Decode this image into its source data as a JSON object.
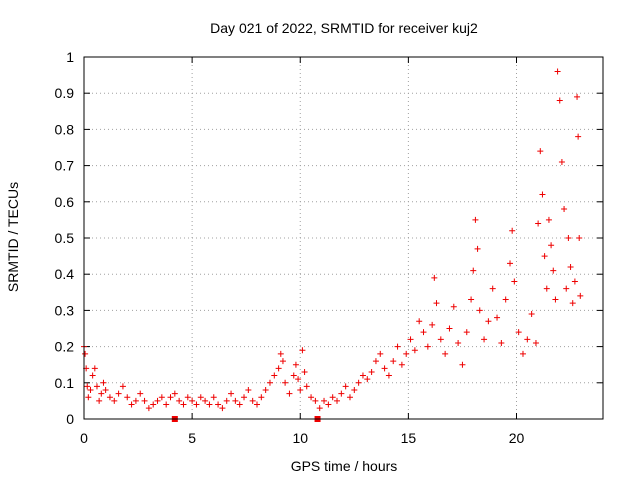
{
  "chart_data": {
    "type": "scatter",
    "title": "Day 021 of 2022, SRMTID for receiver kuj2",
    "xlabel": "GPS time / hours",
    "ylabel": "SRMTID / TECUs",
    "xlim": [
      0,
      24
    ],
    "ylim": [
      0,
      1
    ],
    "xticks": [
      0,
      5,
      10,
      15,
      20
    ],
    "xtick_labels": [
      "0",
      "5",
      "10",
      "15",
      "20"
    ],
    "yticks": [
      0,
      0.1,
      0.2,
      0.3,
      0.4,
      0.5,
      0.6,
      0.7,
      0.8,
      0.9,
      1
    ],
    "ytick_labels": [
      "0",
      "0.1",
      "0.2",
      "0.3",
      "0.4",
      "0.5",
      "0.6",
      "0.7",
      "0.8",
      "0.9",
      "1"
    ],
    "grid": true,
    "marker": "plus",
    "series": [
      {
        "name": "SRMTID",
        "color": "#ee0000",
        "points": [
          [
            0.0,
            0.2
          ],
          [
            0.05,
            0.18
          ],
          [
            0.1,
            0.14
          ],
          [
            0.15,
            0.09
          ],
          [
            0.2,
            0.06
          ],
          [
            0.3,
            0.08
          ],
          [
            0.4,
            0.12
          ],
          [
            0.5,
            0.14
          ],
          [
            0.6,
            0.09
          ],
          [
            0.7,
            0.05
          ],
          [
            0.8,
            0.07
          ],
          [
            0.9,
            0.1
          ],
          [
            1.0,
            0.08
          ],
          [
            1.2,
            0.06
          ],
          [
            1.4,
            0.05
          ],
          [
            1.6,
            0.07
          ],
          [
            1.8,
            0.09
          ],
          [
            2.0,
            0.06
          ],
          [
            2.2,
            0.04
          ],
          [
            2.4,
            0.05
          ],
          [
            2.6,
            0.07
          ],
          [
            2.8,
            0.05
          ],
          [
            3.0,
            0.03
          ],
          [
            3.2,
            0.04
          ],
          [
            3.4,
            0.05
          ],
          [
            3.6,
            0.06
          ],
          [
            3.8,
            0.04
          ],
          [
            4.0,
            0.06
          ],
          [
            4.2,
            0.07
          ],
          [
            4.4,
            0.05
          ],
          [
            4.6,
            0.04
          ],
          [
            4.8,
            0.06
          ],
          [
            5.0,
            0.05
          ],
          [
            5.2,
            0.04
          ],
          [
            5.4,
            0.06
          ],
          [
            5.6,
            0.05
          ],
          [
            5.8,
            0.04
          ],
          [
            6.0,
            0.06
          ],
          [
            6.2,
            0.04
          ],
          [
            6.4,
            0.03
          ],
          [
            6.6,
            0.05
          ],
          [
            6.8,
            0.07
          ],
          [
            7.0,
            0.05
          ],
          [
            7.2,
            0.04
          ],
          [
            7.4,
            0.06
          ],
          [
            7.6,
            0.08
          ],
          [
            7.8,
            0.05
          ],
          [
            8.0,
            0.04
          ],
          [
            8.2,
            0.06
          ],
          [
            8.4,
            0.08
          ],
          [
            8.6,
            0.1
          ],
          [
            8.8,
            0.12
          ],
          [
            9.0,
            0.14
          ],
          [
            9.1,
            0.18
          ],
          [
            9.2,
            0.16
          ],
          [
            9.3,
            0.1
          ],
          [
            9.5,
            0.07
          ],
          [
            9.7,
            0.12
          ],
          [
            9.8,
            0.15
          ],
          [
            9.9,
            0.11
          ],
          [
            10.0,
            0.08
          ],
          [
            10.1,
            0.19
          ],
          [
            10.2,
            0.13
          ],
          [
            10.3,
            0.09
          ],
          [
            10.5,
            0.06
          ],
          [
            10.7,
            0.05
          ],
          [
            10.9,
            0.03
          ],
          [
            11.1,
            0.05
          ],
          [
            11.3,
            0.04
          ],
          [
            11.5,
            0.06
          ],
          [
            11.7,
            0.05
          ],
          [
            11.9,
            0.07
          ],
          [
            12.1,
            0.09
          ],
          [
            12.3,
            0.06
          ],
          [
            12.5,
            0.08
          ],
          [
            12.7,
            0.1
          ],
          [
            12.9,
            0.12
          ],
          [
            13.1,
            0.11
          ],
          [
            13.3,
            0.13
          ],
          [
            13.5,
            0.16
          ],
          [
            13.7,
            0.18
          ],
          [
            13.9,
            0.14
          ],
          [
            14.1,
            0.12
          ],
          [
            14.3,
            0.16
          ],
          [
            14.5,
            0.2
          ],
          [
            14.7,
            0.15
          ],
          [
            14.9,
            0.18
          ],
          [
            15.1,
            0.22
          ],
          [
            15.3,
            0.19
          ],
          [
            15.5,
            0.27
          ],
          [
            15.7,
            0.24
          ],
          [
            15.9,
            0.2
          ],
          [
            16.1,
            0.26
          ],
          [
            16.2,
            0.39
          ],
          [
            16.3,
            0.32
          ],
          [
            16.5,
            0.22
          ],
          [
            16.7,
            0.18
          ],
          [
            16.9,
            0.25
          ],
          [
            17.1,
            0.31
          ],
          [
            17.3,
            0.21
          ],
          [
            17.5,
            0.15
          ],
          [
            17.7,
            0.24
          ],
          [
            17.9,
            0.33
          ],
          [
            18.0,
            0.41
          ],
          [
            18.1,
            0.55
          ],
          [
            18.2,
            0.47
          ],
          [
            18.3,
            0.3
          ],
          [
            18.5,
            0.22
          ],
          [
            18.7,
            0.27
          ],
          [
            18.9,
            0.36
          ],
          [
            19.1,
            0.28
          ],
          [
            19.3,
            0.21
          ],
          [
            19.5,
            0.33
          ],
          [
            19.7,
            0.43
          ],
          [
            19.8,
            0.52
          ],
          [
            19.9,
            0.38
          ],
          [
            20.1,
            0.24
          ],
          [
            20.3,
            0.18
          ],
          [
            20.5,
            0.22
          ],
          [
            20.7,
            0.29
          ],
          [
            20.9,
            0.21
          ],
          [
            21.0,
            0.54
          ],
          [
            21.1,
            0.74
          ],
          [
            21.2,
            0.62
          ],
          [
            21.3,
            0.45
          ],
          [
            21.4,
            0.36
          ],
          [
            21.5,
            0.55
          ],
          [
            21.6,
            0.48
          ],
          [
            21.7,
            0.41
          ],
          [
            21.8,
            0.33
          ],
          [
            21.9,
            0.96
          ],
          [
            22.0,
            0.88
          ],
          [
            22.1,
            0.71
          ],
          [
            22.2,
            0.58
          ],
          [
            22.3,
            0.36
          ],
          [
            22.4,
            0.5
          ],
          [
            22.5,
            0.42
          ],
          [
            22.6,
            0.32
          ],
          [
            22.7,
            0.38
          ],
          [
            22.8,
            0.89
          ],
          [
            22.85,
            0.78
          ],
          [
            22.9,
            0.5
          ],
          [
            22.95,
            0.34
          ]
        ]
      }
    ],
    "special_markers": [
      {
        "x": 4.2,
        "y": 0.0,
        "shape": "square"
      },
      {
        "x": 10.8,
        "y": 0.0,
        "shape": "square"
      }
    ]
  }
}
